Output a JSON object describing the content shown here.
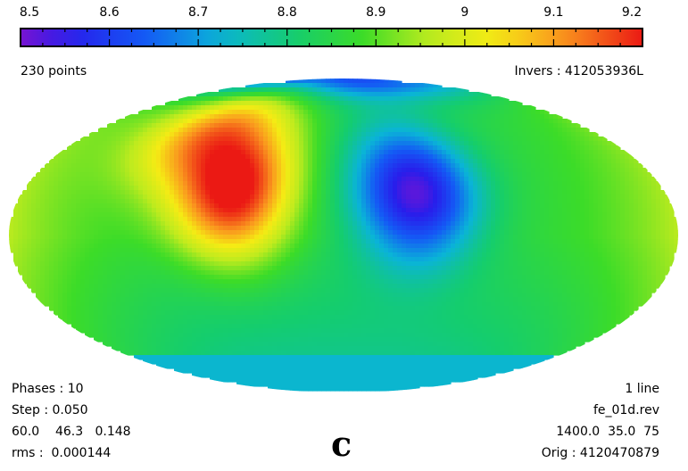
{
  "chart_data": {
    "type": "heatmap",
    "projection": "mollweide",
    "colorbar": {
      "min": 8.5,
      "max": 9.2,
      "tick_labels": [
        "8.5",
        "8.6",
        "8.7",
        "8.8",
        "8.9",
        "9",
        "9.1",
        "9.2"
      ],
      "colormap": "rainbow"
    },
    "features": [
      {
        "kind": "high",
        "value": 9.2,
        "lon": -60,
        "lat": 20
      },
      {
        "kind": "high",
        "value": 9.1,
        "lon": -95,
        "lat": 50
      },
      {
        "kind": "low",
        "value": 8.52,
        "lon": 40,
        "lat": 20
      },
      {
        "kind": "low",
        "value": 8.6,
        "lon": 30,
        "lat": 88
      }
    ],
    "unseen_region": {
      "below_lat": -60,
      "value": 8.73
    }
  },
  "header": {
    "points_label": "230 points",
    "invers_label": "Invers : 412053936L"
  },
  "footer_left": {
    "phases": "Phases : 10",
    "step": "Step : 0.050",
    "params": "60.0    46.3   0.148",
    "rms": "rms :  0.000144"
  },
  "footer_right": {
    "lines": "1 line",
    "file": "fe_01d.rev",
    "params": "1400.0  35.0  75",
    "orig": "Orig : 4120470879"
  },
  "panel_letter": "c"
}
